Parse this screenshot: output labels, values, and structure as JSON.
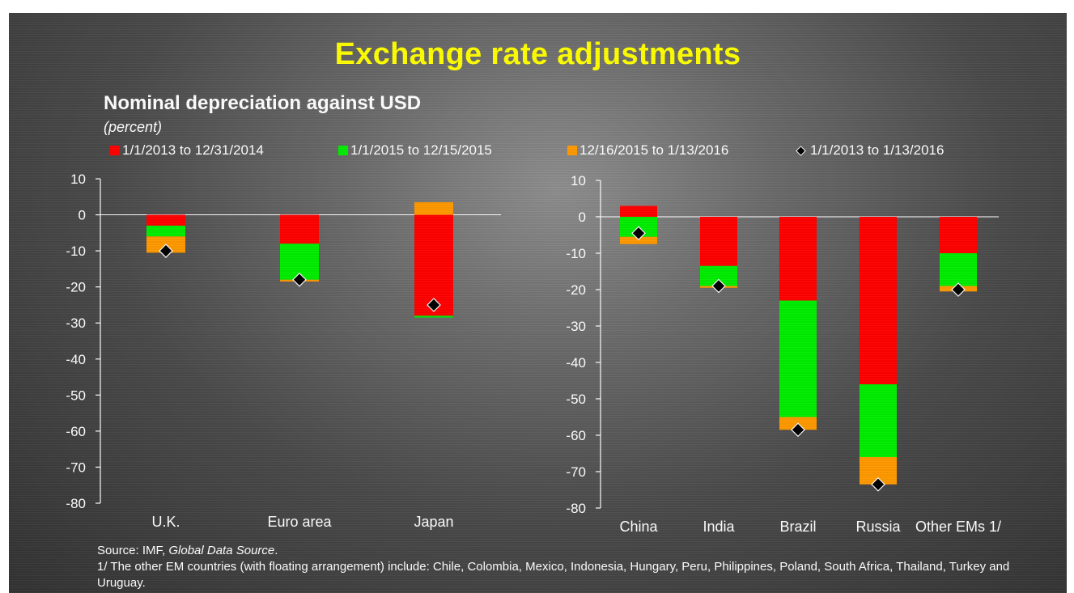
{
  "title": "Exchange rate adjustments",
  "subtitle": "Nominal depreciation against USD",
  "unit": "(percent)",
  "colors": {
    "series_red": "#ff0000",
    "series_green": "#00ee00",
    "series_orange": "#ff9900",
    "marker": "#000000",
    "title": "#ffff00"
  },
  "legend": [
    {
      "label": "1/1/2013 to 12/31/2014",
      "color": "#ff0000",
      "kind": "swatch"
    },
    {
      "label": "1/1/2015 to 12/15/2015",
      "color": "#00ee00",
      "kind": "swatch"
    },
    {
      "label": "12/16/2015 to 1/13/2016",
      "color": "#ff9900",
      "kind": "swatch"
    },
    {
      "label": "1/1/2013 to 1/13/2016",
      "color": "#000000",
      "kind": "diamond"
    }
  ],
  "footer": {
    "source_prefix": "Source: IMF, ",
    "source_italic": "Global Data Source",
    "source_suffix": ".",
    "note": "1/ The other EM countries (with floating arrangement) include: Chile, Colombia, Mexico, Indonesia, Hungary, Peru, Philippines, Poland, South Africa, Thailand, Turkey and Uruguay."
  },
  "chart_data": [
    {
      "type": "bar",
      "stacked": true,
      "categories": [
        "U.K.",
        "Euro area",
        "Japan"
      ],
      "series": [
        {
          "name": "1/1/2013 to 12/31/2014",
          "values": [
            -3,
            -8,
            -28
          ]
        },
        {
          "name": "1/1/2015 to 12/15/2015",
          "values": [
            -3,
            -10,
            -0.5
          ]
        },
        {
          "name": "12/16/2015 to 1/13/2016",
          "values": [
            -4.5,
            -0.5,
            3.5
          ]
        }
      ],
      "markers": {
        "name": "1/1/2013 to 1/13/2016",
        "values": [
          -10,
          -18,
          -25
        ]
      },
      "ylim": [
        -80,
        10
      ],
      "yticks": [
        10,
        0,
        -10,
        -20,
        -30,
        -40,
        -50,
        -60,
        -70,
        -80
      ],
      "ytick_labels": [
        "10",
        "0",
        "-10",
        "-20",
        "-30",
        "-40",
        "-50",
        "-60",
        "-70",
        "-80"
      ]
    },
    {
      "type": "bar",
      "stacked": true,
      "categories": [
        "China",
        "India",
        "Brazil",
        "Russia",
        "Other EMs 1/"
      ],
      "series": [
        {
          "name": "1/1/2013 to 12/31/2014",
          "values": [
            3,
            -13.5,
            -23,
            -46,
            -10
          ]
        },
        {
          "name": "1/1/2015 to 12/15/2015",
          "values": [
            -5.5,
            -5.5,
            -32,
            -20,
            -9
          ]
        },
        {
          "name": "12/16/2015 to 1/13/2016",
          "values": [
            -2,
            -0.5,
            -3.5,
            -7.5,
            -1.5
          ]
        }
      ],
      "markers": {
        "name": "1/1/2013 to 1/13/2016",
        "values": [
          -4.5,
          -19,
          -58.5,
          -73.5,
          -20
        ]
      },
      "ylim": [
        -80,
        10
      ],
      "yticks": [
        10,
        0,
        -10,
        -20,
        -30,
        -40,
        -50,
        -60,
        -70,
        -80
      ],
      "ytick_labels": [
        "10",
        "0",
        "-10",
        "-20",
        "-30",
        "-40",
        "-50",
        "-60",
        "-70",
        "-80"
      ]
    }
  ]
}
